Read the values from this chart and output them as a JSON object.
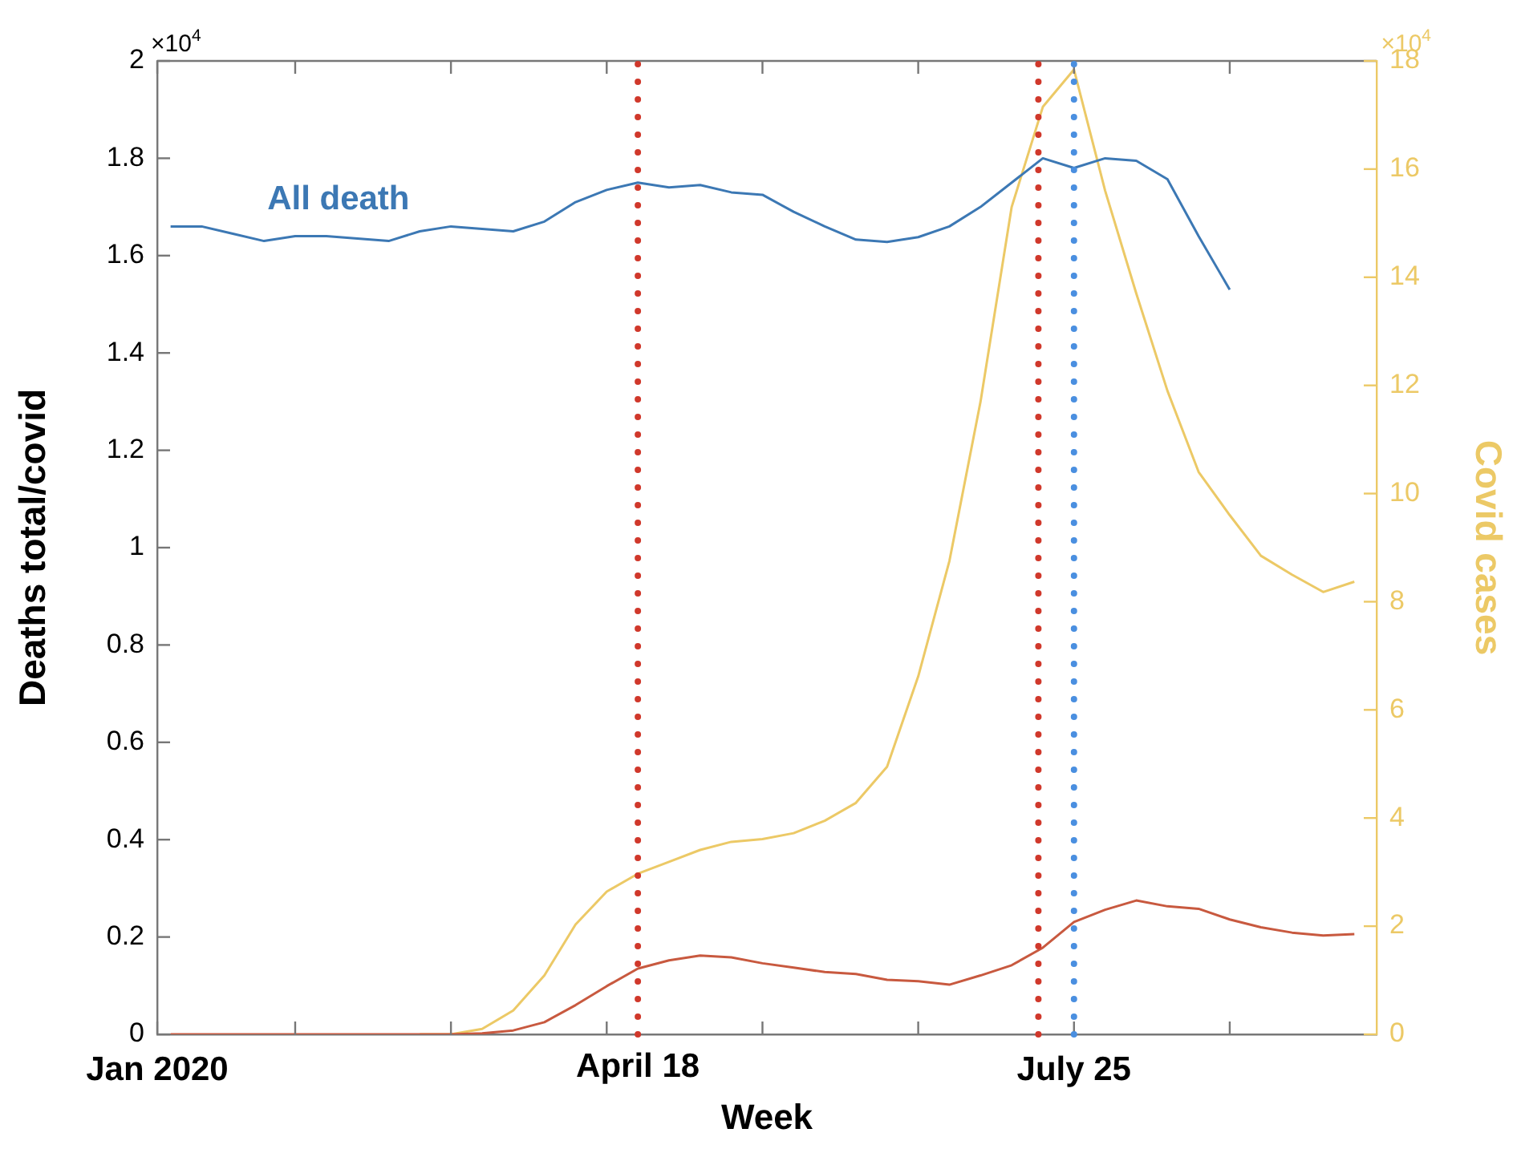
{
  "chart_data": {
    "type": "line",
    "xlabel": "Week",
    "ylabel": "Deaths total/covid",
    "y2label": "Covid cases",
    "x": [
      "2020-01-04",
      "2020-01-11",
      "2020-01-18",
      "2020-01-25",
      "2020-02-01",
      "2020-02-08",
      "2020-02-15",
      "2020-02-22",
      "2020-02-29",
      "2020-03-07",
      "2020-03-14",
      "2020-03-21",
      "2020-03-28",
      "2020-04-04",
      "2020-04-11",
      "2020-04-18",
      "2020-04-25",
      "2020-05-02",
      "2020-05-09",
      "2020-05-16",
      "2020-05-23",
      "2020-05-30",
      "2020-06-06",
      "2020-06-13",
      "2020-06-20",
      "2020-06-27",
      "2020-07-04",
      "2020-07-11",
      "2020-07-18",
      "2020-07-25",
      "2020-08-01",
      "2020-08-08",
      "2020-08-15",
      "2020-08-22",
      "2020-08-29",
      "2020-09-05",
      "2020-09-12",
      "2020-09-19",
      "2020-09-26"
    ],
    "series": [
      {
        "name": "All death",
        "color": "#3c78b4",
        "values": [
          1.66,
          1.66,
          1.645,
          1.63,
          1.64,
          1.64,
          1.635,
          1.63,
          1.65,
          1.66,
          1.655,
          1.65,
          1.67,
          1.71,
          1.735,
          1.75,
          1.74,
          1.745,
          1.73,
          1.725,
          1.69,
          1.66,
          1.633,
          1.628,
          1.638,
          1.66,
          1.7,
          1.75,
          1.8,
          1.78,
          1.8,
          1.795,
          1.757,
          1.64,
          1.53,
          null,
          null,
          null,
          null
        ]
      },
      {
        "color": "#c8593f",
        "values": [
          0,
          0,
          0,
          0,
          0,
          0,
          0,
          0,
          0,
          0,
          0.002,
          0.008,
          0.025,
          0.06,
          0.099,
          0.135,
          0.152,
          0.162,
          0.158,
          0.146,
          0.137,
          0.128,
          0.124,
          0.112,
          0.109,
          0.102,
          0.121,
          0.142,
          0.178,
          0.231,
          0.256,
          0.275,
          0.263,
          0.258,
          0.236,
          0.22,
          0.209,
          0.203,
          0.206
        ]
      },
      {
        "color": "#ecc966",
        "axis": "y2",
        "values": [
          null,
          null,
          null,
          null,
          null,
          null,
          null,
          null,
          0,
          0,
          0.1,
          0.44,
          1.09,
          2.03,
          2.64,
          2.97,
          3.19,
          3.41,
          3.56,
          3.61,
          3.72,
          3.95,
          4.28,
          4.95,
          6.62,
          8.75,
          11.7,
          15.3,
          17.15,
          17.84,
          15.6,
          13.7,
          11.9,
          10.4,
          9.6,
          8.85,
          8.5,
          8.18,
          8.37
        ]
      }
    ],
    "xlim": [
      "2020-01-01",
      "2020-10-01"
    ],
    "xticks": [
      {
        "value": "2020-01-01",
        "label": "Jan 2020"
      },
      {
        "value": "2020-02-01",
        "label": null
      },
      {
        "value": "2020-03-07",
        "label": null
      },
      {
        "value": "2020-04-11",
        "label": null
      },
      {
        "value": "2020-05-16",
        "label": null
      },
      {
        "value": "2020-06-20",
        "label": null
      },
      {
        "value": "2020-07-25",
        "label": "July 25"
      },
      {
        "value": "2020-08-29",
        "label": null
      }
    ],
    "ylim": [
      0,
      2
    ],
    "yticks": [
      0,
      0.2,
      0.4,
      0.6,
      0.8,
      1,
      1.2,
      1.4,
      1.6,
      1.8,
      2
    ],
    "y2lim": [
      0,
      18
    ],
    "y2ticks": [
      0,
      2,
      4,
      6,
      8,
      10,
      12,
      14,
      16,
      18
    ],
    "ref_lines": [
      {
        "axis": "x",
        "value": "2020-04-18",
        "label": "April 18",
        "color": "#d0382b",
        "line_style": "dotted"
      },
      {
        "axis": "x",
        "value": "2020-07-17",
        "color": "#d0382b",
        "line_style": "dotted"
      },
      {
        "axis": "x",
        "value": "2020-07-25",
        "color": "#4a8fe0",
        "line_style": "dotted"
      }
    ],
    "annotations": [
      "×10$^{4}$",
      "×10$^{4}$"
    ],
    "grid": false,
    "legend": false
  }
}
